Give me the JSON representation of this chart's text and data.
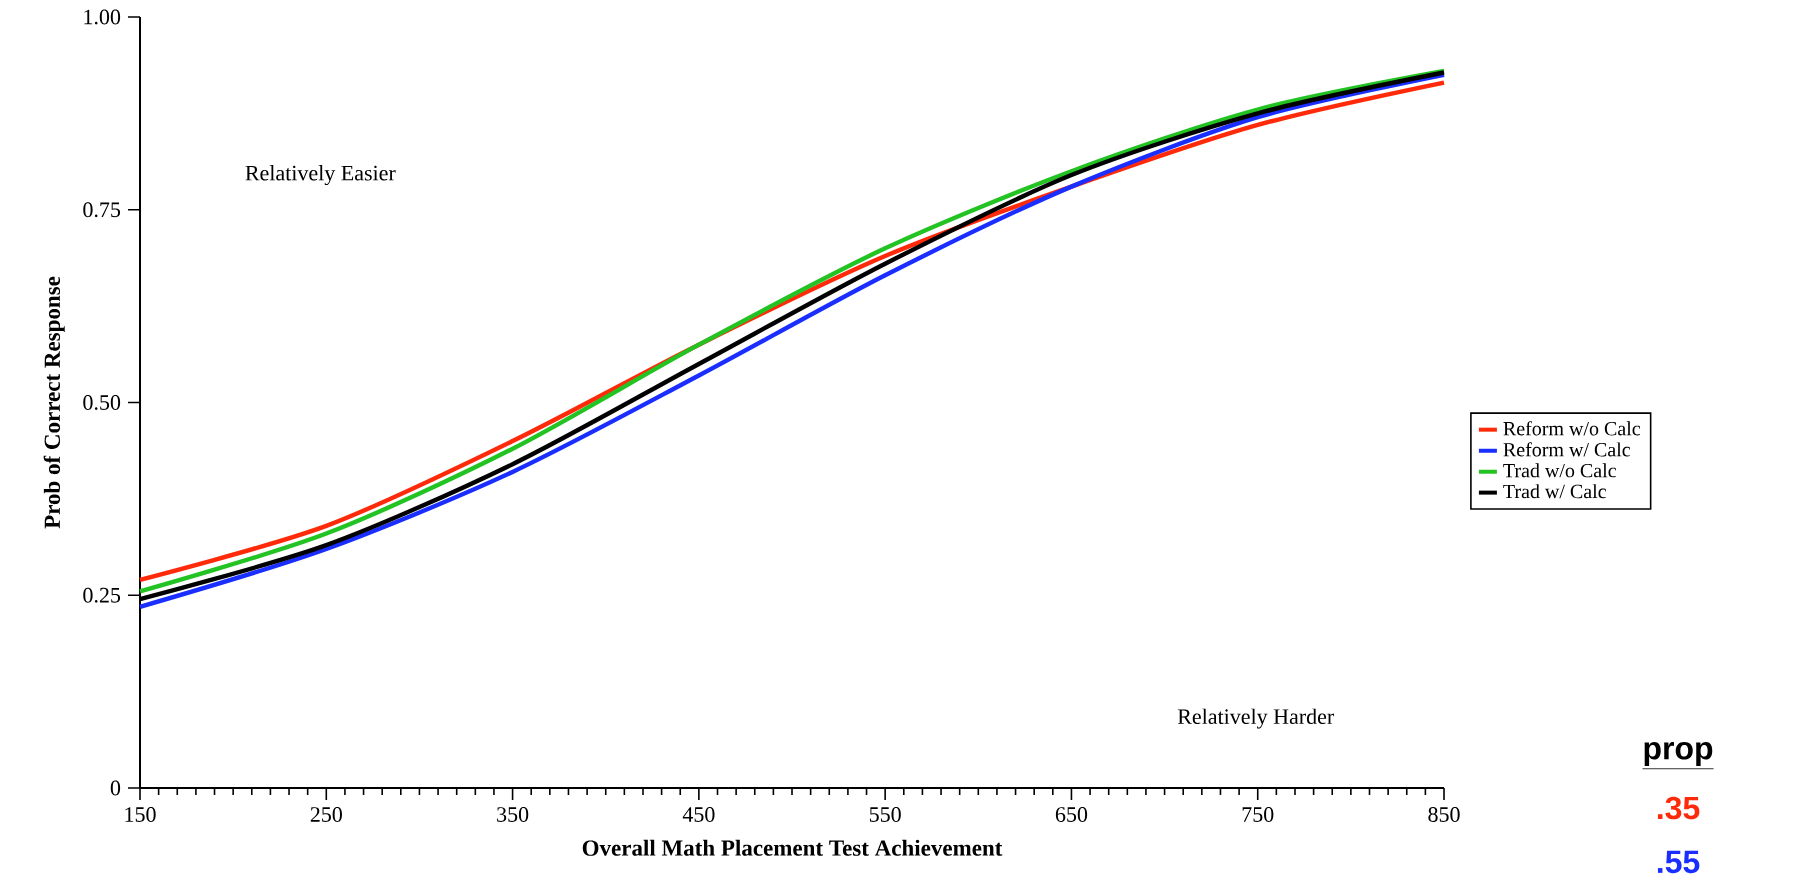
{
  "chart_data": {
    "type": "line",
    "xlabel": "Overall Math Placement Test Achievement",
    "ylabel": "Prob of Correct Response",
    "x": [
      150,
      250,
      350,
      450,
      550,
      650,
      750,
      850
    ],
    "series": [
      {
        "name": "Reform w/o Calc",
        "color": "#ff2a0a",
        "values": [
          0.27,
          0.34,
          0.45,
          0.575,
          0.69,
          0.78,
          0.86,
          0.915
        ]
      },
      {
        "name": "Reform w/ Calc",
        "color": "#1a2eff",
        "values": [
          0.235,
          0.31,
          0.41,
          0.535,
          0.665,
          0.78,
          0.87,
          0.925
        ]
      },
      {
        "name": "Trad w/o Calc",
        "color": "#22c322",
        "values": [
          0.255,
          0.33,
          0.44,
          0.575,
          0.7,
          0.8,
          0.88,
          0.93
        ]
      },
      {
        "name": "Trad w/ Calc",
        "color": "#000000",
        "values": [
          0.245,
          0.315,
          0.42,
          0.55,
          0.68,
          0.795,
          0.875,
          0.928
        ]
      }
    ],
    "xlim": [
      150,
      850
    ],
    "ylim": [
      0,
      1
    ],
    "xticks": [
      150,
      250,
      350,
      450,
      550,
      650,
      750,
      850
    ],
    "yticks": [
      {
        "value": 0,
        "label": "0"
      },
      {
        "value": 0.25,
        "label": "0.25"
      },
      {
        "value": 0.5,
        "label": "0.50"
      },
      {
        "value": 0.75,
        "label": "0.75"
      },
      {
        "value": 1,
        "label": "1.00"
      }
    ],
    "grid": false,
    "legend": "right",
    "marker": "none",
    "line_style": "solid",
    "annotations": [
      "Relatively Easier",
      "Relatively Harder",
      "prop",
      ".35",
      ".55"
    ]
  }
}
